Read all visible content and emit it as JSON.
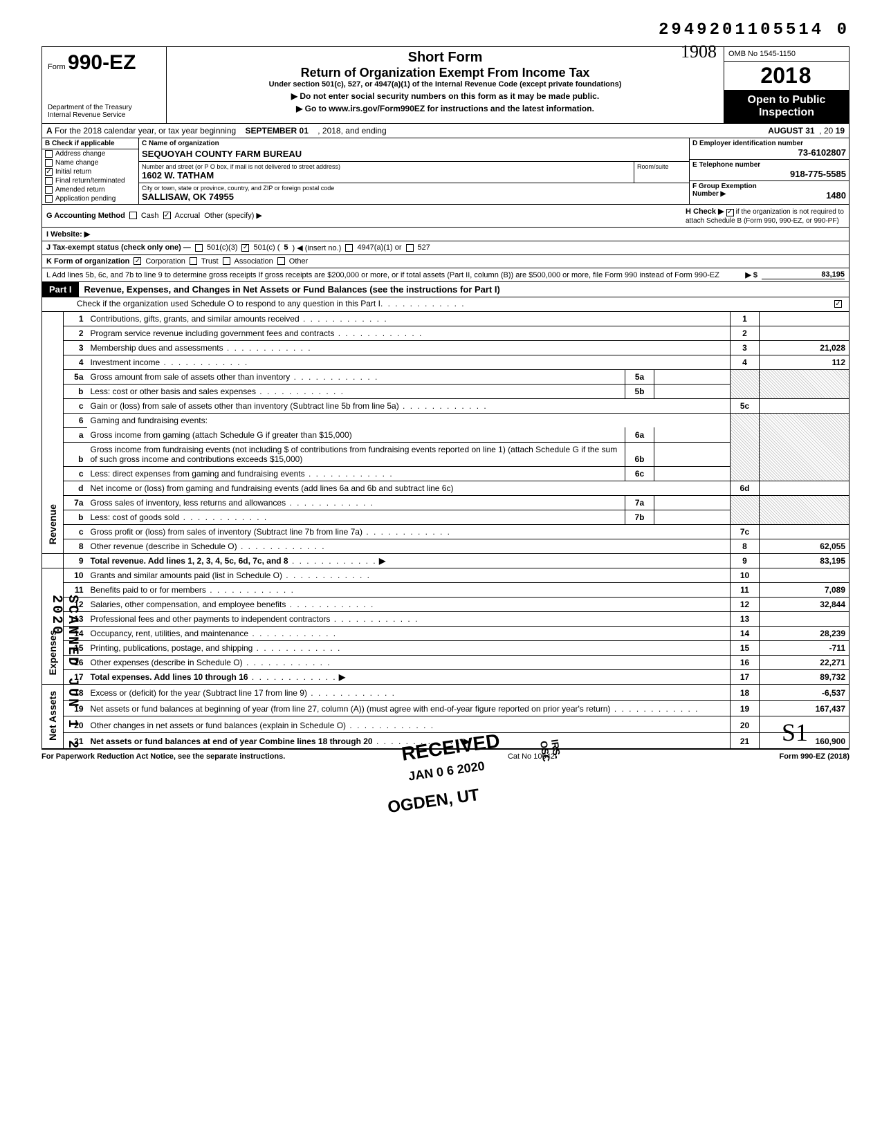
{
  "top_id": "2949201105514  0",
  "form": {
    "form_label": "Form",
    "form_number": "990-EZ",
    "dept1": "Department of the Treasury",
    "dept2": "Internal Revenue Service",
    "short_form": "Short Form",
    "return_title": "Return of Organization Exempt From Income Tax",
    "subtext": "Under section 501(c), 527, or 4947(a)(1) of the Internal Revenue Code (except private foundations)",
    "arrow1": "▶ Do not enter social security numbers on this form as it may be made public.",
    "arrow2": "▶ Go to www.irs.gov/Form990EZ for instructions and the latest information.",
    "omb": "OMB No 1545-1150",
    "year_prefix": "20",
    "year_bold": "18",
    "open1": "Open to Public",
    "open2": "Inspection",
    "handwritten_year": "1908"
  },
  "rowA": {
    "label": "A",
    "text1": "For the 2018 calendar year, or tax year beginning",
    "begin": "SEPTEMBER 01",
    "text2": ", 2018, and ending",
    "end": "AUGUST 31",
    "text3": ", 20",
    "yy": "19"
  },
  "colB": {
    "header": "B  Check if applicable",
    "items": [
      {
        "label": "Address change",
        "checked": false
      },
      {
        "label": "Name change",
        "checked": false
      },
      {
        "label": "Initial return",
        "checked": true
      },
      {
        "label": "Final return/terminated",
        "checked": false
      },
      {
        "label": "Amended return",
        "checked": false
      },
      {
        "label": "Application pending",
        "checked": false
      }
    ]
  },
  "colC": {
    "name_label": "C  Name of organization",
    "name": "SEQUOYAH COUNTY FARM BUREAU",
    "street_label": "Number and street (or P O  box, if mail is not delivered to street address)",
    "room_label": "Room/suite",
    "street": "1602 W. TATHAM",
    "city_label": "City or town, state or province, country, and ZIP or foreign postal code",
    "city": "SALLISAW, OK  74955"
  },
  "colD": {
    "d_label": "D  Employer identification number",
    "ein": "73-6102807",
    "e_label": "E  Telephone number",
    "phone": "918-775-5585",
    "f_label": "F  Group Exemption",
    "f_label2": "Number ▶",
    "group_num": "1480"
  },
  "rowG": {
    "g_label": "G  Accounting Method",
    "cash": "Cash",
    "accrual": "Accrual",
    "other": "Other (specify) ▶",
    "accrual_checked": true,
    "h_label": "H  Check ▶",
    "h_text": "if the organization is not required to attach Schedule B (Form 990, 990-EZ, or 990-PF)",
    "h_checked": true
  },
  "rowI": {
    "label": "I  Website: ▶"
  },
  "rowJ": {
    "label": "J  Tax-exempt status (check only one) —",
    "o1": "501(c)(3)",
    "o2": "501(c) (",
    "insert": "5",
    "o2b": ") ◀ (insert no.)",
    "o3": "4947(a)(1) or",
    "o4": "527",
    "o2_checked": true
  },
  "rowK": {
    "label": "K  Form of organization",
    "corp": "Corporation",
    "corp_checked": true,
    "trust": "Trust",
    "assoc": "Association",
    "other": "Other"
  },
  "rowL": {
    "text": "L  Add lines 5b, 6c, and 7b to line 9 to determine gross receipts  If gross receipts are $200,000 or more, or if total assets (Part II, column (B)) are $500,000 or more, file Form 990 instead of Form 990-EZ",
    "arrow": "▶  $",
    "value": "83,195"
  },
  "part1": {
    "tag": "Part I",
    "title": "Revenue, Expenses, and Changes in Net Assets or Fund Balances (see the instructions for Part I)",
    "sub": "Check if the organization used Schedule O to respond to any question in this Part I",
    "sub_checked": true
  },
  "side_labels": {
    "revenue": "Revenue",
    "expenses": "Expenses",
    "netassets": "Net Assets"
  },
  "lines": {
    "l1": {
      "n": "1",
      "d": "Contributions, gifts, grants, and similar amounts received",
      "v": ""
    },
    "l2": {
      "n": "2",
      "d": "Program service revenue including government fees and contracts",
      "v": ""
    },
    "l3": {
      "n": "3",
      "d": "Membership dues and assessments",
      "v": "21,028"
    },
    "l4": {
      "n": "4",
      "d": "Investment income",
      "v": "112"
    },
    "l5a": {
      "n": "5a",
      "d": "Gross amount from sale of assets other than inventory",
      "mn": "5a",
      "mv": ""
    },
    "l5b": {
      "n": "b",
      "d": "Less: cost or other basis and sales expenses",
      "mn": "5b",
      "mv": ""
    },
    "l5c": {
      "n": "c",
      "d": "Gain or (loss) from sale of assets other than inventory (Subtract line 5b from line 5a)",
      "nc": "5c",
      "v": ""
    },
    "l6": {
      "n": "6",
      "d": "Gaming and fundraising events:"
    },
    "l6a": {
      "n": "a",
      "d": "Gross income from gaming (attach Schedule G if greater than $15,000)",
      "mn": "6a",
      "mv": ""
    },
    "l6b": {
      "n": "b",
      "d": "Gross income from fundraising events (not including  $                         of contributions from fundraising events reported on line 1) (attach Schedule G if the sum of such gross income and contributions exceeds $15,000)",
      "mn": "6b",
      "mv": ""
    },
    "l6c": {
      "n": "c",
      "d": "Less: direct expenses from gaming and fundraising events",
      "mn": "6c",
      "mv": ""
    },
    "l6d": {
      "n": "d",
      "d": "Net income or (loss) from gaming and fundraising events (add lines 6a and 6b and subtract line 6c)",
      "nc": "6d",
      "v": ""
    },
    "l7a": {
      "n": "7a",
      "d": "Gross sales of inventory, less returns and allowances",
      "mn": "7a",
      "mv": ""
    },
    "l7b": {
      "n": "b",
      "d": "Less: cost of goods sold",
      "mn": "7b",
      "mv": ""
    },
    "l7c": {
      "n": "c",
      "d": "Gross profit or (loss) from sales of inventory (Subtract line 7b from line 7a)",
      "nc": "7c",
      "v": ""
    },
    "l8": {
      "n": "8",
      "d": "Other revenue (describe in Schedule O)",
      "v": "62,055"
    },
    "l9": {
      "n": "9",
      "d": "Total revenue. Add lines 1, 2, 3, 4, 5c, 6d, 7c, and 8",
      "arrow": "▶",
      "v": "83,195",
      "bold": true
    },
    "l10": {
      "n": "10",
      "d": "Grants and similar amounts paid (list in Schedule O)",
      "v": ""
    },
    "l11": {
      "n": "11",
      "d": "Benefits paid to or for members",
      "v": "7,089"
    },
    "l12": {
      "n": "12",
      "d": "Salaries, other compensation, and employee benefits",
      "v": "32,844"
    },
    "l13": {
      "n": "13",
      "d": "Professional fees and other payments to independent contractors",
      "v": ""
    },
    "l14": {
      "n": "14",
      "d": "Occupancy, rent, utilities, and maintenance",
      "v": "28,239"
    },
    "l15": {
      "n": "15",
      "d": "Printing, publications, postage, and shipping",
      "v": "-711"
    },
    "l16": {
      "n": "16",
      "d": "Other expenses (describe in Schedule O)",
      "v": "22,271"
    },
    "l17": {
      "n": "17",
      "d": "Total expenses. Add lines 10 through 16",
      "arrow": "▶",
      "v": "89,732",
      "bold": true
    },
    "l18": {
      "n": "18",
      "d": "Excess or (deficit) for the year (Subtract line 17 from line 9)",
      "v": "-6,537"
    },
    "l19": {
      "n": "19",
      "d": "Net assets or fund balances at beginning of year (from line 27, column (A)) (must agree with end-of-year figure reported on prior year's return)",
      "v": "167,437"
    },
    "l20": {
      "n": "20",
      "d": "Other changes in net assets or fund balances (explain in Schedule O)",
      "v": ""
    },
    "l21": {
      "n": "21",
      "d": "Net assets or fund balances at end of year  Combine lines 18 through 20",
      "arrow": "▶",
      "v": "160,900",
      "bold": true
    }
  },
  "stamps": {
    "received": "RECEIVED",
    "date": "JAN 0 6 2020",
    "ogden": "OGDEN, UT",
    "irs_osc": "IRS-OSC",
    "side": "SCANNED JUN 1 2 2020",
    "initial": "S1"
  },
  "footer": {
    "left": "For Paperwork Reduction Act Notice, see the separate instructions.",
    "mid": "Cat  No  10642I",
    "right": "Form 990-EZ (2018)"
  }
}
